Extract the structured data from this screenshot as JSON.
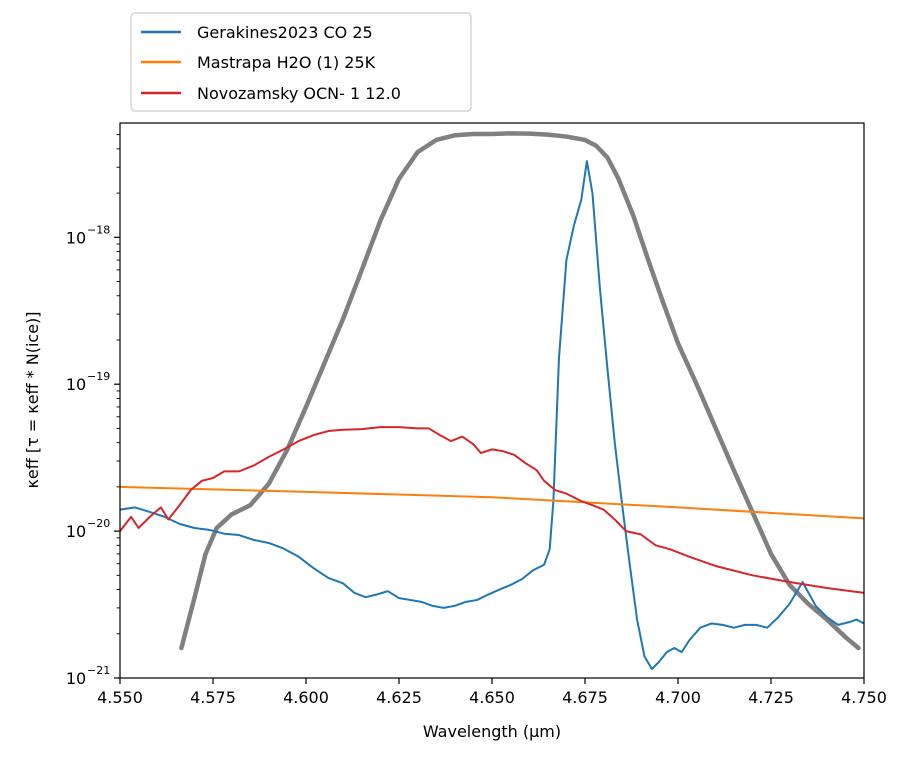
{
  "chart_data": {
    "type": "line",
    "xlabel": "Wavelength (μm)",
    "ylabel": "κeff [τ = κeff * N(ice)]",
    "xlim": [
      4.55,
      4.75
    ],
    "ylim": [
      1e-21,
      6e-18
    ],
    "yscale": "log",
    "legend_placement": "above-top-left",
    "grid": false,
    "x_ticks": [
      4.55,
      4.575,
      4.6,
      4.625,
      4.65,
      4.675,
      4.7,
      4.725,
      4.75
    ],
    "x_tick_labels": [
      "4.550",
      "4.575",
      "4.600",
      "4.625",
      "4.650",
      "4.675",
      "4.700",
      "4.725",
      "4.750"
    ],
    "y_ticks": [
      {
        "value": 1e-21,
        "mantissa": "10",
        "exp": "−21"
      },
      {
        "value": 1e-20,
        "mantissa": "10",
        "exp": "−20"
      },
      {
        "value": 1e-19,
        "mantissa": "10",
        "exp": "−19"
      },
      {
        "value": 1e-18,
        "mantissa": "10",
        "exp": "−18"
      }
    ],
    "series": [
      {
        "color": "#808080",
        "width": 4.5,
        "legend": false,
        "points": [
          [
            4.5665,
            1.6e-21
          ],
          [
            4.57,
            3.5e-21
          ],
          [
            4.573,
            7e-21
          ],
          [
            4.576,
            1.05e-20
          ],
          [
            4.58,
            1.3e-20
          ],
          [
            4.585,
            1.5e-20
          ],
          [
            4.59,
            2.1e-20
          ],
          [
            4.595,
            3.6e-20
          ],
          [
            4.6,
            7e-20
          ],
          [
            4.605,
            1.4e-19
          ],
          [
            4.61,
            2.8e-19
          ],
          [
            4.615,
            6e-19
          ],
          [
            4.62,
            1.3e-18
          ],
          [
            4.625,
            2.5e-18
          ],
          [
            4.63,
            3.8e-18
          ],
          [
            4.635,
            4.6e-18
          ],
          [
            4.64,
            4.95e-18
          ],
          [
            4.645,
            5.05e-18
          ],
          [
            4.65,
            5.05e-18
          ],
          [
            4.655,
            5.1e-18
          ],
          [
            4.66,
            5.08e-18
          ],
          [
            4.665,
            5e-18
          ],
          [
            4.67,
            4.85e-18
          ],
          [
            4.675,
            4.6e-18
          ],
          [
            4.678,
            4.2e-18
          ],
          [
            4.681,
            3.5e-18
          ],
          [
            4.684,
            2.5e-18
          ],
          [
            4.688,
            1.4e-18
          ],
          [
            4.692,
            7e-19
          ],
          [
            4.696,
            3.6e-19
          ],
          [
            4.7,
            1.9e-19
          ],
          [
            4.705,
            1e-19
          ],
          [
            4.71,
            5.1e-20
          ],
          [
            4.715,
            2.6e-20
          ],
          [
            4.72,
            1.35e-20
          ],
          [
            4.725,
            7e-21
          ],
          [
            4.73,
            4.3e-21
          ],
          [
            4.735,
            3.2e-21
          ],
          [
            4.74,
            2.5e-21
          ],
          [
            4.745,
            1.9e-21
          ],
          [
            4.7485,
            1.6e-21
          ]
        ]
      },
      {
        "name": "Gerakines2023 CO 25",
        "color": "#1f77b4",
        "width": 2,
        "points": [
          [
            4.55,
            1.4e-20
          ],
          [
            4.554,
            1.45e-20
          ],
          [
            4.558,
            1.35e-20
          ],
          [
            4.562,
            1.25e-20
          ],
          [
            4.566,
            1.12e-20
          ],
          [
            4.57,
            1.05e-20
          ],
          [
            4.574,
            1.02e-20
          ],
          [
            4.578,
            9.6e-21
          ],
          [
            4.582,
            9.4e-21
          ],
          [
            4.586,
            8.7e-21
          ],
          [
            4.59,
            8.3e-21
          ],
          [
            4.594,
            7.6e-21
          ],
          [
            4.598,
            6.7e-21
          ],
          [
            4.602,
            5.6e-21
          ],
          [
            4.606,
            4.8e-21
          ],
          [
            4.61,
            4.4e-21
          ],
          [
            4.613,
            3.8e-21
          ],
          [
            4.616,
            3.55e-21
          ],
          [
            4.619,
            3.7e-21
          ],
          [
            4.622,
            3.9e-21
          ],
          [
            4.625,
            3.5e-21
          ],
          [
            4.628,
            3.4e-21
          ],
          [
            4.631,
            3.3e-21
          ],
          [
            4.634,
            3.1e-21
          ],
          [
            4.637,
            3e-21
          ],
          [
            4.64,
            3.1e-21
          ],
          [
            4.643,
            3.3e-21
          ],
          [
            4.646,
            3.4e-21
          ],
          [
            4.649,
            3.7e-21
          ],
          [
            4.652,
            4e-21
          ],
          [
            4.655,
            4.3e-21
          ],
          [
            4.658,
            4.7e-21
          ],
          [
            4.661,
            5.4e-21
          ],
          [
            4.664,
            5.9e-21
          ],
          [
            4.6655,
            7.5e-21
          ],
          [
            4.6665,
            1.6e-20
          ],
          [
            4.668,
            1.5e-19
          ],
          [
            4.67,
            7e-19
          ],
          [
            4.672,
            1.2e-18
          ],
          [
            4.674,
            1.8e-18
          ],
          [
            4.6755,
            3.3e-18
          ],
          [
            4.677,
            2e-18
          ],
          [
            4.679,
            4.5e-19
          ],
          [
            4.681,
            1.3e-19
          ],
          [
            4.683,
            4e-20
          ],
          [
            4.685,
            1.5e-20
          ],
          [
            4.687,
            6e-21
          ],
          [
            4.689,
            2.5e-21
          ],
          [
            4.691,
            1.4e-21
          ],
          [
            4.693,
            1.15e-21
          ],
          [
            4.695,
            1.3e-21
          ],
          [
            4.697,
            1.5e-21
          ],
          [
            4.699,
            1.6e-21
          ],
          [
            4.701,
            1.5e-21
          ],
          [
            4.703,
            1.8e-21
          ],
          [
            4.706,
            2.2e-21
          ],
          [
            4.709,
            2.35e-21
          ],
          [
            4.712,
            2.3e-21
          ],
          [
            4.715,
            2.2e-21
          ],
          [
            4.718,
            2.3e-21
          ],
          [
            4.721,
            2.3e-21
          ],
          [
            4.724,
            2.2e-21
          ],
          [
            4.727,
            2.6e-21
          ],
          [
            4.73,
            3.2e-21
          ],
          [
            4.7335,
            4.5e-21
          ],
          [
            4.737,
            3.1e-21
          ],
          [
            4.74,
            2.6e-21
          ],
          [
            4.743,
            2.3e-21
          ],
          [
            4.746,
            2.4e-21
          ],
          [
            4.748,
            2.5e-21
          ],
          [
            4.75,
            2.35e-21
          ]
        ]
      },
      {
        "name": "Mastrapa H2O (1) 25K",
        "color": "#ff7f0e",
        "width": 2,
        "points": [
          [
            4.55,
            2e-20
          ],
          [
            4.6,
            1.85e-20
          ],
          [
            4.65,
            1.7e-20
          ],
          [
            4.7,
            1.45e-20
          ],
          [
            4.75,
            1.22e-20
          ]
        ]
      },
      {
        "name": "Novozamsky OCN- 1 12.0",
        "color": "#d62728",
        "width": 2,
        "points": [
          [
            4.55,
            1e-20
          ],
          [
            4.553,
            1.25e-20
          ],
          [
            4.555,
            1.05e-20
          ],
          [
            4.558,
            1.25e-20
          ],
          [
            4.561,
            1.45e-20
          ],
          [
            4.563,
            1.2e-20
          ],
          [
            4.566,
            1.5e-20
          ],
          [
            4.569,
            1.9e-20
          ],
          [
            4.572,
            2.2e-20
          ],
          [
            4.575,
            2.3e-20
          ],
          [
            4.578,
            2.55e-20
          ],
          [
            4.582,
            2.55e-20
          ],
          [
            4.586,
            2.8e-20
          ],
          [
            4.59,
            3.2e-20
          ],
          [
            4.594,
            3.6e-20
          ],
          [
            4.598,
            4.1e-20
          ],
          [
            4.602,
            4.5e-20
          ],
          [
            4.606,
            4.8e-20
          ],
          [
            4.61,
            4.9e-20
          ],
          [
            4.615,
            4.95e-20
          ],
          [
            4.62,
            5.1e-20
          ],
          [
            4.625,
            5.1e-20
          ],
          [
            4.63,
            5e-20
          ],
          [
            4.633,
            5e-20
          ],
          [
            4.636,
            4.5e-20
          ],
          [
            4.639,
            4.1e-20
          ],
          [
            4.642,
            4.4e-20
          ],
          [
            4.645,
            3.9e-20
          ],
          [
            4.647,
            3.4e-20
          ],
          [
            4.65,
            3.6e-20
          ],
          [
            4.653,
            3.5e-20
          ],
          [
            4.656,
            3.3e-20
          ],
          [
            4.659,
            2.9e-20
          ],
          [
            4.662,
            2.6e-20
          ],
          [
            4.664,
            2.2e-20
          ],
          [
            4.667,
            1.9e-20
          ],
          [
            4.67,
            1.8e-20
          ],
          [
            4.674,
            1.6e-20
          ],
          [
            4.677,
            1.5e-20
          ],
          [
            4.68,
            1.4e-20
          ],
          [
            4.683,
            1.2e-20
          ],
          [
            4.686,
            1e-20
          ],
          [
            4.69,
            9.5e-21
          ],
          [
            4.694,
            8e-21
          ],
          [
            4.698,
            7.5e-21
          ],
          [
            4.703,
            6.7e-21
          ],
          [
            4.71,
            5.8e-21
          ],
          [
            4.72,
            5e-21
          ],
          [
            4.73,
            4.5e-21
          ],
          [
            4.74,
            4.1e-21
          ],
          [
            4.75,
            3.8e-21
          ]
        ]
      }
    ]
  }
}
